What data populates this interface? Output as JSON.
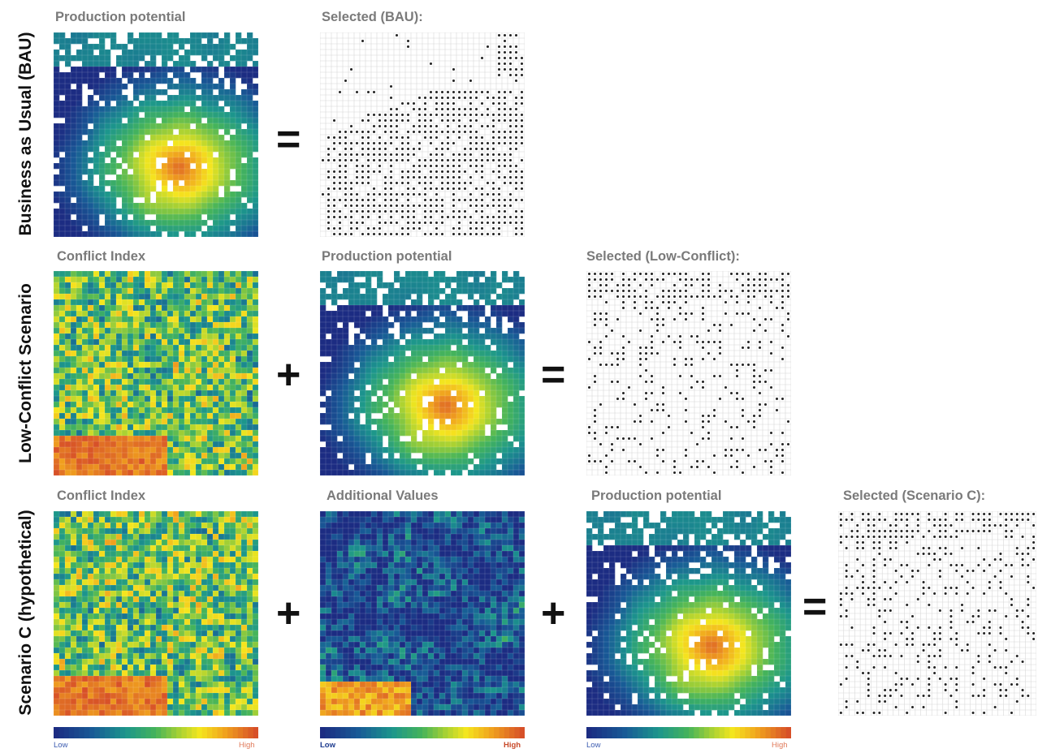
{
  "rows": [
    {
      "label": "Business as Usual (BAU)"
    },
    {
      "label": "Low-Conflict Scenario"
    },
    {
      "label": "Scenario C (hypothetical)"
    }
  ],
  "panels": {
    "bau_production": {
      "title": "Production potential"
    },
    "bau_selected": {
      "title": "Selected (BAU):"
    },
    "lc_conflict": {
      "title": "Conflict Index"
    },
    "lc_production": {
      "title": "Production potential"
    },
    "lc_selected": {
      "title": "Selected (Low-Conflict):"
    },
    "c_conflict": {
      "title": "Conflict Index"
    },
    "c_additional": {
      "title": "Additional Values"
    },
    "c_production": {
      "title": "Production potential"
    },
    "c_selected": {
      "title": "Selected (Scenario C):"
    }
  },
  "operators": {
    "plus": "+",
    "equals": "="
  },
  "colorbars": [
    {
      "low": "Low",
      "high": "High"
    },
    {
      "low": "Low",
      "high": "High"
    },
    {
      "low": "Low",
      "high": "High"
    }
  ],
  "colors": {
    "low": "#1c3a8e",
    "mid": "#22b0a0",
    "yellow": "#f2e21a",
    "high": "#e06a30",
    "title_gray": "#7a7a7a",
    "low_label": "#3a5ab0",
    "high_label": "#e07a5a"
  }
}
